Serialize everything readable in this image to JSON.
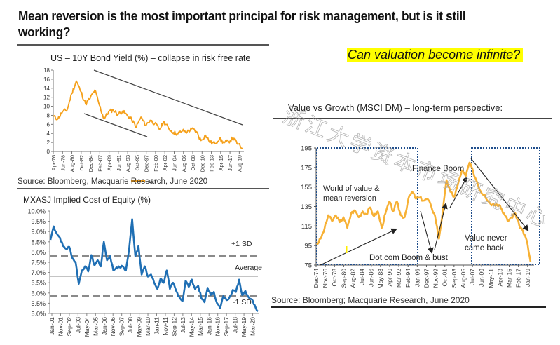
{
  "page": {
    "title": "Mean reversion is the most important principal for risk management, but is it still working?",
    "question": "Can valuation become infinite?",
    "question_highlight": "#ffff00",
    "watermark": "浙江大学资本市场研究中心"
  },
  "chart_data": [
    {
      "id": "us10y",
      "type": "line",
      "title": "US – 10Y Bond Yield (%) – collapse in risk free rate",
      "xlabel": "",
      "ylabel": "",
      "ylim": [
        0,
        18
      ],
      "yticks": [
        0,
        2,
        4,
        6,
        8,
        10,
        12,
        14,
        16,
        18
      ],
      "grid": false,
      "legend": "bottom",
      "color": "#f5a01a",
      "categories": [
        "Apr-76",
        "Jun-78",
        "Aug-80",
        "Oct-82",
        "Dec-84",
        "Feb-87",
        "Apr-89",
        "Jun-91",
        "Aug-93",
        "Oct-95",
        "Dec-97",
        "Feb-00",
        "Apr-02",
        "Jun-04",
        "Aug-06",
        "Oct-08",
        "Dec-10",
        "Feb-13",
        "Apr-15",
        "Jun-17",
        "Aug-19"
      ],
      "series": [
        {
          "name": "10Y",
          "values": [
            7.8,
            7.2,
            8.8,
            9.2,
            12.8,
            15.6,
            13.2,
            10.5,
            11.8,
            13.6,
            10.2,
            7.2,
            8.8,
            9.2,
            8.2,
            8.9,
            8.0,
            7.0,
            5.4,
            7.6,
            5.8,
            6.9,
            6.2,
            4.9,
            6.6,
            5.1,
            4.2,
            3.9,
            4.6,
            4.3,
            5.0,
            4.4,
            2.4,
            3.6,
            2.0,
            1.8,
            2.8,
            1.9,
            2.2,
            3.0,
            1.6,
            0.7
          ]
        }
      ],
      "series_x_span": [
        "Apr-76",
        "Jun-20"
      ],
      "annotations": [
        {
          "type": "trend-line",
          "label": "upper-downtrend"
        },
        {
          "type": "trend-line",
          "label": "lower-downtrend"
        }
      ],
      "source": "Source: Bloomberg, Macquarie Research, June 2020"
    },
    {
      "id": "mxasj",
      "type": "line",
      "title": "MXASJ  Implied  Cost of Equity (%)",
      "xlabel": "",
      "ylabel": "",
      "ylim": [
        5.0,
        10.0
      ],
      "yticks": [
        "5.0%",
        "5.5%",
        "6.0%",
        "6.5%",
        "7.0%",
        "7.5%",
        "8.0%",
        "8.5%",
        "9.0%",
        "9.5%",
        "10.0%"
      ],
      "grid": false,
      "color": "#1f6fb4",
      "categories": [
        "Jan-01",
        "Nov-01",
        "Sep-02",
        "Jul-03",
        "May-04",
        "Mar-05",
        "Jan-06",
        "Nov-06",
        "Sep-07",
        "Jul-08",
        "May-09",
        "Mar-10",
        "Jan-11",
        "Nov-11",
        "Sep-12",
        "Jul-13",
        "May-14",
        "Mar-15",
        "Jan-16",
        "Nov-16",
        "Sep-17",
        "Jul-18",
        "May-19",
        "Mar-20"
      ],
      "series": [
        {
          "name": "MXASJ Implied Cost of Equity",
          "values": [
            8.6,
            9.25,
            8.9,
            8.7,
            8.3,
            8.15,
            8.25,
            7.7,
            7.5,
            6.45,
            7.1,
            7.3,
            7.05,
            7.85,
            7.35,
            7.6,
            7.3,
            8.5,
            7.6,
            7.8,
            7.1,
            7.25,
            7.25,
            7.3,
            7.1,
            8.1,
            9.6,
            7.8,
            8.3,
            6.9,
            7.3,
            6.8,
            6.9,
            6.5,
            6.2,
            6.7,
            6.5,
            7.1,
            6.2,
            6.5,
            6.1,
            5.8,
            5.6,
            6.6,
            6.3,
            6.65,
            6.2,
            6.35,
            5.75,
            5.55,
            6.25,
            5.9,
            6.05,
            5.5,
            5.25,
            5.85,
            5.65,
            5.8,
            6.15,
            6.05,
            6.65,
            5.9,
            6.1,
            5.8,
            5.7,
            5.4,
            5.1
          ]
        }
      ],
      "reference_lines": [
        {
          "label": "+1 SD",
          "value": 7.8,
          "style": "dashed"
        },
        {
          "label": "Average",
          "value": 6.82,
          "style": "solid"
        },
        {
          "label": "-1 SD",
          "value": 5.85,
          "style": "dashed"
        }
      ],
      "source": ""
    },
    {
      "id": "value-vs-growth",
      "type": "line",
      "title": "Value vs Growth (MSCI DM) – long-term perspective:",
      "xlabel": "",
      "ylabel": "",
      "ylim": [
        75,
        195
      ],
      "yticks": [
        75,
        95,
        115,
        135,
        155,
        175,
        195
      ],
      "grid": false,
      "color": "#f7b135",
      "categories": [
        "Dec-74",
        "Nov-76",
        "Oct-78",
        "Sep-80",
        "Aug-82",
        "Jul-84",
        "Jun-86",
        "May-88",
        "Apr-90",
        "Mar-92",
        "Feb-94",
        "Jan-96",
        "Dec-97",
        "Nov-99",
        "Oct-01",
        "Sep-03",
        "Aug-05",
        "Jul-07",
        "Jun-09",
        "May-11",
        "Apr-13",
        "Mar-15",
        "Feb-17",
        "Jan-19"
      ],
      "series": [
        {
          "name": "Value vs Growth",
          "values": [
            96,
            102,
            112,
            126,
            120,
            126,
            119,
            124,
            113,
            128,
            131,
            124,
            130,
            127,
            134,
            125,
            130,
            113,
            128,
            140,
            130,
            140,
            126,
            124,
            143,
            150,
            143,
            144,
            141,
            143,
            135,
            125,
            102,
            130,
            162,
            150,
            145,
            158,
            172,
            166,
            180,
            170,
            160,
            150,
            147,
            140,
            137,
            138,
            136,
            128,
            120,
            124,
            128,
            116,
            110,
            100,
            78
          ]
        }
      ],
      "annotations": [
        {
          "text": "World of value & mean reversion",
          "type": "label"
        },
        {
          "text": "Dot.com Boom & bust",
          "type": "label"
        },
        {
          "text": "Finance Boom",
          "type": "label"
        },
        {
          "text": "Value never came back",
          "type": "label"
        }
      ],
      "regions": [
        {
          "from": "Dec-74",
          "to": "Jan-96",
          "style": "dotted-box"
        },
        {
          "from": "Jul-07",
          "to": "Jun-20",
          "style": "dotted-box"
        }
      ],
      "source": "Source: Bloomberg; Macquarie Research, June 2020"
    }
  ]
}
